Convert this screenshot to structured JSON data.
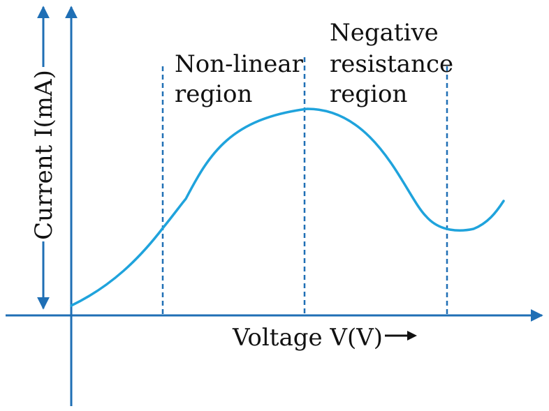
{
  "y_axis": {
    "label": "Current I(mA)"
  },
  "x_axis": {
    "label": "Voltage V(V)",
    "arrow": "→"
  },
  "regions": [
    {
      "name": "non-linear",
      "lines": [
        "Non-linear",
        "region"
      ]
    },
    {
      "name": "negative-resistance",
      "lines": [
        "Negative",
        "resistance",
        "region"
      ]
    }
  ],
  "colors": {
    "axis": "#1f6fb5",
    "curve": "#1fa3dc",
    "divider": "#1f6fb5",
    "text": "#111111"
  },
  "icons": [
    "up-arrow-icon",
    "down-arrow-icon",
    "right-arrow-icon"
  ]
}
